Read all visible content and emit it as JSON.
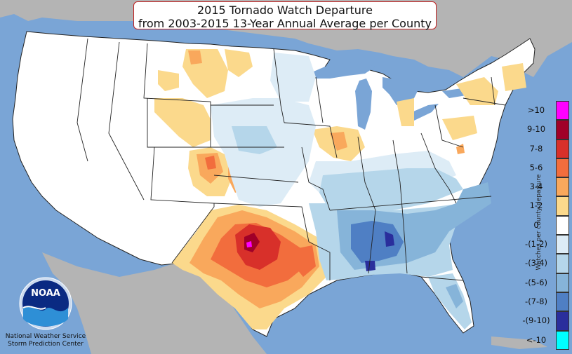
{
  "title": {
    "line1": "2015 Tornado Watch Departure",
    "line2": "from 2003-2015 13-Year Annual Average per County"
  },
  "legend": {
    "axis_label": "Watches per county departure",
    "items": [
      {
        "label": ">10",
        "color": "#ff00ff"
      },
      {
        "label": "9-10",
        "color": "#a00028"
      },
      {
        "label": "7-8",
        "color": "#d8302a"
      },
      {
        "label": "5-6",
        "color": "#f26d3d"
      },
      {
        "label": "3-4",
        "color": "#f9a85c"
      },
      {
        "label": "1-2",
        "color": "#fbd98c"
      },
      {
        "label": "0",
        "color": "#ffffff"
      },
      {
        "label": "-(1-2)",
        "color": "#ddecf6"
      },
      {
        "label": "-(3-4)",
        "color": "#b5d6ea"
      },
      {
        "label": "-(5-6)",
        "color": "#86b4d9"
      },
      {
        "label": "-(7-8)",
        "color": "#4f7fc4"
      },
      {
        "label": "-(9-10)",
        "color": "#2a2e9c"
      },
      {
        "label": "<-10",
        "color": "#00ffff"
      }
    ]
  },
  "logo": {
    "text": "NOAA"
  },
  "credit": {
    "line1": "National Weather Service",
    "line2": "Storm Prediction Center"
  },
  "colors": {
    "ocean": "#7aa5d6",
    "land_outside": "#b4b4b4",
    "land_us": "#ffffff",
    "great_lakes": "#7aa5d6"
  }
}
